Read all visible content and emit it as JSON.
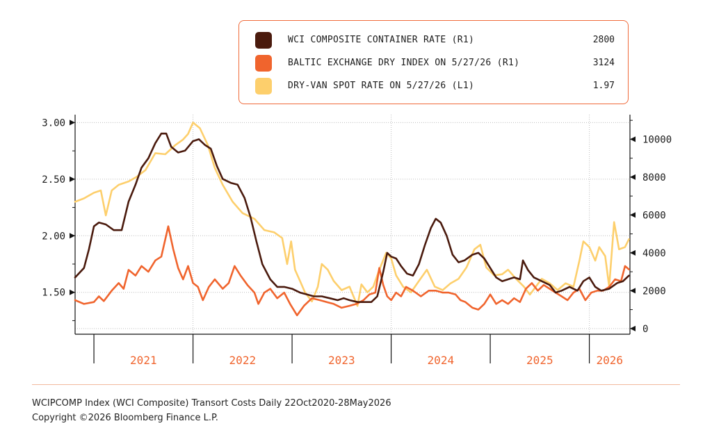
{
  "legend": [
    {
      "label": "WCI COMPOSITE CONTAINER RATE (R1)",
      "value": "2800",
      "color": "#4a1a0d"
    },
    {
      "label": "BALTIC EXCHANGE DRY INDEX ON 5/27/26 (R1)",
      "value": "3124",
      "color": "#f0642d"
    },
    {
      "label": "DRY-VAN SPOT RATE ON 5/27/26 (L1)",
      "value": "1.97",
      "color": "#fdcf6c"
    }
  ],
  "footer": {
    "source": "WCIPCOMP Index (WCI Composite) Transort Costs Daily 22Oct2020-28May2026",
    "copyright": "Copyright ©2026 Bloomberg Finance L.P."
  },
  "chart_data": {
    "type": "line",
    "x_range": [
      2020.81,
      2026.41
    ],
    "left_axis": {
      "ticks": [
        1.5,
        2.0,
        2.5,
        3.0
      ],
      "tick_labels": [
        "1.50",
        "2.00",
        "2.50",
        "3.00"
      ],
      "range": [
        1.13,
        3.07
      ]
    },
    "right_axis": {
      "ticks": [
        0,
        2000,
        4000,
        6000,
        8000,
        10000
      ],
      "tick_labels": [
        "0",
        "2000",
        "4000",
        "6000",
        "8000",
        "10000"
      ],
      "range": [
        -300,
        11300
      ]
    },
    "x_ticks": [
      2021,
      2022,
      2023,
      2024,
      2025,
      2026
    ],
    "x_tick_labels": [
      "2021",
      "2022",
      "2023",
      "2024",
      "2025",
      "2026"
    ],
    "series": [
      {
        "name": "DRY-VAN SPOT RATE ON 5/27/26 (L1)",
        "axis": "left",
        "color": "#fdcf6c",
        "points": [
          [
            2020.81,
            2.3
          ],
          [
            2020.9,
            2.33
          ],
          [
            2021.0,
            2.38
          ],
          [
            2021.07,
            2.4
          ],
          [
            2021.12,
            2.18
          ],
          [
            2021.18,
            2.4
          ],
          [
            2021.25,
            2.45
          ],
          [
            2021.35,
            2.48
          ],
          [
            2021.43,
            2.52
          ],
          [
            2021.52,
            2.58
          ],
          [
            2021.62,
            2.73
          ],
          [
            2021.72,
            2.72
          ],
          [
            2021.82,
            2.8
          ],
          [
            2021.9,
            2.85
          ],
          [
            2021.95,
            2.9
          ],
          [
            2022.0,
            3.0
          ],
          [
            2022.07,
            2.95
          ],
          [
            2022.15,
            2.8
          ],
          [
            2022.22,
            2.6
          ],
          [
            2022.3,
            2.45
          ],
          [
            2022.4,
            2.3
          ],
          [
            2022.5,
            2.2
          ],
          [
            2022.62,
            2.15
          ],
          [
            2022.72,
            2.05
          ],
          [
            2022.82,
            2.03
          ],
          [
            2022.9,
            1.98
          ],
          [
            2022.95,
            1.75
          ],
          [
            2022.99,
            1.95
          ],
          [
            2023.03,
            1.7
          ],
          [
            2023.08,
            1.6
          ],
          [
            2023.13,
            1.5
          ],
          [
            2023.2,
            1.42
          ],
          [
            2023.26,
            1.55
          ],
          [
            2023.3,
            1.75
          ],
          [
            2023.36,
            1.7
          ],
          [
            2023.42,
            1.6
          ],
          [
            2023.5,
            1.52
          ],
          [
            2023.58,
            1.55
          ],
          [
            2023.66,
            1.38
          ],
          [
            2023.7,
            1.57
          ],
          [
            2023.76,
            1.5
          ],
          [
            2023.82,
            1.55
          ],
          [
            2023.88,
            1.7
          ],
          [
            2023.95,
            1.85
          ],
          [
            2024.0,
            1.8
          ],
          [
            2024.05,
            1.65
          ],
          [
            2024.12,
            1.55
          ],
          [
            2024.2,
            1.5
          ],
          [
            2024.28,
            1.6
          ],
          [
            2024.36,
            1.7
          ],
          [
            2024.44,
            1.55
          ],
          [
            2024.52,
            1.52
          ],
          [
            2024.6,
            1.58
          ],
          [
            2024.68,
            1.62
          ],
          [
            2024.76,
            1.72
          ],
          [
            2024.84,
            1.88
          ],
          [
            2024.9,
            1.92
          ],
          [
            2024.96,
            1.72
          ],
          [
            2025.04,
            1.65
          ],
          [
            2025.12,
            1.66
          ],
          [
            2025.18,
            1.7
          ],
          [
            2025.26,
            1.62
          ],
          [
            2025.34,
            1.55
          ],
          [
            2025.4,
            1.48
          ],
          [
            2025.46,
            1.55
          ],
          [
            2025.52,
            1.62
          ],
          [
            2025.6,
            1.58
          ],
          [
            2025.68,
            1.52
          ],
          [
            2025.76,
            1.58
          ],
          [
            2025.84,
            1.55
          ],
          [
            2025.9,
            1.78
          ],
          [
            2025.94,
            1.95
          ],
          [
            2026.0,
            1.9
          ],
          [
            2026.06,
            1.78
          ],
          [
            2026.1,
            1.9
          ],
          [
            2026.16,
            1.82
          ],
          [
            2026.2,
            1.55
          ],
          [
            2026.25,
            2.12
          ],
          [
            2026.3,
            1.88
          ],
          [
            2026.36,
            1.9
          ],
          [
            2026.4,
            1.97
          ]
        ]
      },
      {
        "name": "BALTIC EXCHANGE DRY INDEX ON 5/27/26 (R1)",
        "axis": "right",
        "color": "#f0642d",
        "points": [
          [
            2020.81,
            1500
          ],
          [
            2020.9,
            1300
          ],
          [
            2021.0,
            1400
          ],
          [
            2021.05,
            1700
          ],
          [
            2021.1,
            1450
          ],
          [
            2021.18,
            2000
          ],
          [
            2021.25,
            2400
          ],
          [
            2021.3,
            2100
          ],
          [
            2021.35,
            3100
          ],
          [
            2021.42,
            2800
          ],
          [
            2021.48,
            3300
          ],
          [
            2021.55,
            3000
          ],
          [
            2021.62,
            3600
          ],
          [
            2021.68,
            3800
          ],
          [
            2021.75,
            5400
          ],
          [
            2021.8,
            4200
          ],
          [
            2021.85,
            3200
          ],
          [
            2021.9,
            2600
          ],
          [
            2021.95,
            3300
          ],
          [
            2022.0,
            2400
          ],
          [
            2022.05,
            2200
          ],
          [
            2022.1,
            1500
          ],
          [
            2022.16,
            2200
          ],
          [
            2022.22,
            2600
          ],
          [
            2022.3,
            2100
          ],
          [
            2022.36,
            2400
          ],
          [
            2022.42,
            3300
          ],
          [
            2022.48,
            2800
          ],
          [
            2022.55,
            2300
          ],
          [
            2022.62,
            1900
          ],
          [
            2022.66,
            1300
          ],
          [
            2022.72,
            1900
          ],
          [
            2022.78,
            2100
          ],
          [
            2022.85,
            1600
          ],
          [
            2022.92,
            1900
          ],
          [
            2022.98,
            1300
          ],
          [
            2023.05,
            700
          ],
          [
            2023.12,
            1200
          ],
          [
            2023.2,
            1600
          ],
          [
            2023.28,
            1500
          ],
          [
            2023.35,
            1400
          ],
          [
            2023.42,
            1300
          ],
          [
            2023.5,
            1100
          ],
          [
            2023.58,
            1200
          ],
          [
            2023.65,
            1300
          ],
          [
            2023.72,
            1500
          ],
          [
            2023.78,
            1800
          ],
          [
            2023.84,
            1900
          ],
          [
            2023.88,
            3200
          ],
          [
            2023.92,
            2300
          ],
          [
            2023.96,
            1700
          ],
          [
            2024.0,
            1500
          ],
          [
            2024.05,
            1900
          ],
          [
            2024.1,
            1700
          ],
          [
            2024.15,
            2200
          ],
          [
            2024.22,
            2000
          ],
          [
            2024.3,
            1700
          ],
          [
            2024.38,
            2000
          ],
          [
            2024.45,
            2000
          ],
          [
            2024.52,
            1900
          ],
          [
            2024.58,
            1900
          ],
          [
            2024.65,
            1800
          ],
          [
            2024.7,
            1500
          ],
          [
            2024.75,
            1400
          ],
          [
            2024.82,
            1100
          ],
          [
            2024.88,
            1000
          ],
          [
            2024.94,
            1300
          ],
          [
            2025.0,
            1800
          ],
          [
            2025.06,
            1300
          ],
          [
            2025.12,
            1500
          ],
          [
            2025.18,
            1300
          ],
          [
            2025.24,
            1600
          ],
          [
            2025.3,
            1400
          ],
          [
            2025.36,
            2100
          ],
          [
            2025.42,
            2400
          ],
          [
            2025.48,
            2000
          ],
          [
            2025.54,
            2300
          ],
          [
            2025.6,
            2100
          ],
          [
            2025.66,
            1900
          ],
          [
            2025.72,
            1700
          ],
          [
            2025.78,
            1500
          ],
          [
            2025.84,
            1900
          ],
          [
            2025.9,
            2100
          ],
          [
            2025.96,
            1500
          ],
          [
            2026.02,
            1900
          ],
          [
            2026.08,
            2000
          ],
          [
            2026.14,
            2000
          ],
          [
            2026.2,
            2200
          ],
          [
            2026.26,
            2600
          ],
          [
            2026.32,
            2500
          ],
          [
            2026.36,
            3300
          ],
          [
            2026.4,
            3124
          ]
        ]
      },
      {
        "name": "WCI COMPOSITE CONTAINER RATE (R1)",
        "axis": "right",
        "color": "#4a1a0d",
        "points": [
          [
            2020.81,
            2700
          ],
          [
            2020.9,
            3200
          ],
          [
            2020.95,
            4200
          ],
          [
            2021.0,
            5400
          ],
          [
            2021.05,
            5600
          ],
          [
            2021.12,
            5500
          ],
          [
            2021.2,
            5200
          ],
          [
            2021.28,
            5200
          ],
          [
            2021.35,
            6700
          ],
          [
            2021.42,
            7600
          ],
          [
            2021.48,
            8500
          ],
          [
            2021.55,
            9000
          ],
          [
            2021.62,
            9800
          ],
          [
            2021.68,
            10300
          ],
          [
            2021.73,
            10300
          ],
          [
            2021.78,
            9600
          ],
          [
            2021.85,
            9300
          ],
          [
            2021.92,
            9400
          ],
          [
            2022.0,
            9900
          ],
          [
            2022.06,
            10000
          ],
          [
            2022.12,
            9700
          ],
          [
            2022.18,
            9500
          ],
          [
            2022.24,
            8600
          ],
          [
            2022.3,
            7900
          ],
          [
            2022.38,
            7700
          ],
          [
            2022.45,
            7600
          ],
          [
            2022.52,
            6900
          ],
          [
            2022.58,
            5900
          ],
          [
            2022.64,
            4600
          ],
          [
            2022.7,
            3400
          ],
          [
            2022.78,
            2600
          ],
          [
            2022.85,
            2200
          ],
          [
            2022.92,
            2200
          ],
          [
            2023.0,
            2100
          ],
          [
            2023.08,
            1900
          ],
          [
            2023.15,
            1800
          ],
          [
            2023.22,
            1700
          ],
          [
            2023.3,
            1700
          ],
          [
            2023.38,
            1600
          ],
          [
            2023.46,
            1500
          ],
          [
            2023.52,
            1600
          ],
          [
            2023.58,
            1500
          ],
          [
            2023.66,
            1400
          ],
          [
            2023.74,
            1400
          ],
          [
            2023.8,
            1400
          ],
          [
            2023.86,
            1700
          ],
          [
            2023.92,
            3000
          ],
          [
            2023.96,
            4000
          ],
          [
            2024.0,
            3800
          ],
          [
            2024.05,
            3700
          ],
          [
            2024.1,
            3300
          ],
          [
            2024.16,
            2900
          ],
          [
            2024.22,
            2800
          ],
          [
            2024.28,
            3400
          ],
          [
            2024.34,
            4400
          ],
          [
            2024.4,
            5300
          ],
          [
            2024.45,
            5800
          ],
          [
            2024.5,
            5600
          ],
          [
            2024.56,
            4900
          ],
          [
            2024.62,
            3900
          ],
          [
            2024.68,
            3500
          ],
          [
            2024.74,
            3600
          ],
          [
            2024.82,
            3900
          ],
          [
            2024.88,
            4000
          ],
          [
            2024.94,
            3700
          ],
          [
            2025.0,
            3200
          ],
          [
            2025.06,
            2700
          ],
          [
            2025.12,
            2500
          ],
          [
            2025.18,
            2600
          ],
          [
            2025.24,
            2700
          ],
          [
            2025.3,
            2600
          ],
          [
            2025.33,
            3600
          ],
          [
            2025.38,
            3100
          ],
          [
            2025.44,
            2700
          ],
          [
            2025.52,
            2500
          ],
          [
            2025.6,
            2300
          ],
          [
            2025.66,
            1900
          ],
          [
            2025.72,
            2000
          ],
          [
            2025.8,
            2200
          ],
          [
            2025.88,
            2000
          ],
          [
            2025.94,
            2500
          ],
          [
            2026.0,
            2700
          ],
          [
            2026.06,
            2200
          ],
          [
            2026.12,
            2000
          ],
          [
            2026.2,
            2100
          ],
          [
            2026.28,
            2400
          ],
          [
            2026.34,
            2500
          ],
          [
            2026.4,
            2800
          ]
        ]
      }
    ]
  }
}
